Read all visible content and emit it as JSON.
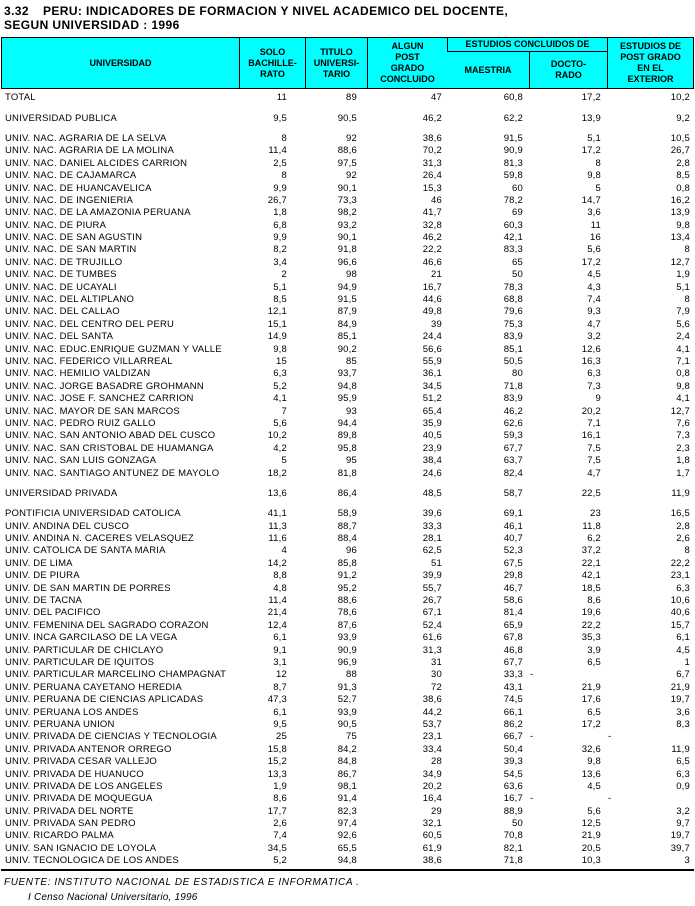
{
  "title": {
    "number": "3.32",
    "line1": "PERU: INDICADORES DE FORMACION Y NIVEL ACADEMICO DEL DOCENTE,",
    "line2": "SEGUN UNIVERSIDAD : 1996"
  },
  "table": {
    "header_fill": "#00FFFF",
    "columns": {
      "universidad": "UNIVERSIDAD",
      "solo_bachillerato": "SOLO\nBACHILLE-\nRATO",
      "titulo_universitario": "TITULO\nUNIVERSI-\nTARIO",
      "algun_post_grado": "ALGUN\nPOST\nGRADO\nCONCLUIDO",
      "estudios_concluidos_de": "ESTUDIOS CONCLUIDOS DE",
      "maestria": "MAESTRIA",
      "doctorado": "DOCTO-\nRADO",
      "post_grado_exterior": "ESTUDIOS DE\nPOST GRADO\nEN EL\nEXTERIOR"
    },
    "rows": [
      {
        "name": "TOTAL",
        "b": "11",
        "t": "89",
        "p": "47",
        "m": "60,8",
        "d": "17,2",
        "e": "10,2"
      },
      {
        "name": "UNIVERSIDAD PUBLICA",
        "b": "9,5",
        "t": "90,5",
        "p": "46,2",
        "m": "62,2",
        "d": "13,9",
        "e": "9,2",
        "gap": true
      },
      {
        "name": "UNIV. NAC. AGRARIA DE LA SELVA",
        "b": "8",
        "t": "92",
        "p": "38,6",
        "m": "91,5",
        "d": "5,1",
        "e": "10,5",
        "gap": true
      },
      {
        "name": "UNIV. NAC. AGRARIA DE LA MOLINA",
        "b": "11,4",
        "t": "88,6",
        "p": "70,2",
        "m": "90,9",
        "d": "17,2",
        "e": "26,7"
      },
      {
        "name": "UNIV. NAC. DANIEL ALCIDES CARRION",
        "b": "2,5",
        "t": "97,5",
        "p": "31,3",
        "m": "81,3",
        "d": "8",
        "e": "2,8"
      },
      {
        "name": "UNIV. NAC. DE CAJAMARCA",
        "b": "8",
        "t": "92",
        "p": "26,4",
        "m": "59,8",
        "d": "9,8",
        "e": "8,5"
      },
      {
        "name": "UNIV. NAC. DE HUANCAVELICA",
        "b": "9,9",
        "t": "90,1",
        "p": "15,3",
        "m": "60",
        "d": "5",
        "e": "0,8"
      },
      {
        "name": "UNIV. NAC. DE INGENIERIA",
        "b": "26,7",
        "t": "73,3",
        "p": "46",
        "m": "78,2",
        "d": "14,7",
        "e": "16,2"
      },
      {
        "name": "UNIV. NAC. DE LA AMAZONIA PERUANA",
        "b": "1,8",
        "t": "98,2",
        "p": "41,7",
        "m": "69",
        "d": "3,6",
        "e": "13,9"
      },
      {
        "name": "UNIV. NAC. DE PIURA",
        "b": "6,8",
        "t": "93,2",
        "p": "32,8",
        "m": "60,3",
        "d": "11",
        "e": "9,8"
      },
      {
        "name": "UNIV. NAC. DE SAN AGUSTIN",
        "b": "9,9",
        "t": "90,1",
        "p": "46,2",
        "m": "42,1",
        "d": "16",
        "e": "13,4"
      },
      {
        "name": "UNIV. NAC. DE SAN MARTIN",
        "b": "8,2",
        "t": "91,8",
        "p": "22,2",
        "m": "83,3",
        "d": "5,6",
        "e": "8"
      },
      {
        "name": "UNIV. NAC. DE TRUJILLO",
        "b": "3,4",
        "t": "96,6",
        "p": "46,6",
        "m": "65",
        "d": "17,2",
        "e": "12,7"
      },
      {
        "name": "UNIV. NAC. DE TUMBES",
        "b": "2",
        "t": "98",
        "p": "21",
        "m": "50",
        "d": "4,5",
        "e": "1,9"
      },
      {
        "name": "UNIV. NAC. DE UCAYALI",
        "b": "5,1",
        "t": "94,9",
        "p": "16,7",
        "m": "78,3",
        "d": "4,3",
        "e": "5,1"
      },
      {
        "name": "UNIV. NAC. DEL ALTIPLANO",
        "b": "8,5",
        "t": "91,5",
        "p": "44,6",
        "m": "68,8",
        "d": "7,4",
        "e": "8"
      },
      {
        "name": "UNIV. NAC. DEL CALLAO",
        "b": "12,1",
        "t": "87,9",
        "p": "49,8",
        "m": "79,6",
        "d": "9,3",
        "e": "7,9"
      },
      {
        "name": "UNIV. NAC. DEL CENTRO DEL PERU",
        "b": "15,1",
        "t": "84,9",
        "p": "39",
        "m": "75,3",
        "d": "4,7",
        "e": "5,6"
      },
      {
        "name": "UNIV. NAC. DEL SANTA",
        "b": "14,9",
        "t": "85,1",
        "p": "24,4",
        "m": "83,9",
        "d": "3,2",
        "e": "2,4"
      },
      {
        "name": "UNIV. NAC. EDUC.ENRIQUE GUZMAN Y VALLE",
        "b": "9,8",
        "t": "90,2",
        "p": "56,6",
        "m": "85,1",
        "d": "12,6",
        "e": "4,1"
      },
      {
        "name": "UNIV. NAC. FEDERICO VILLARREAL",
        "b": "15",
        "t": "85",
        "p": "55,9",
        "m": "50,5",
        "d": "16,3",
        "e": "7,1"
      },
      {
        "name": "UNIV. NAC. HEMILIO VALDIZAN",
        "b": "6,3",
        "t": "93,7",
        "p": "36,1",
        "m": "80",
        "d": "6,3",
        "e": "0,8"
      },
      {
        "name": "UNIV. NAC. JORGE BASADRE GROHMANN",
        "b": "5,2",
        "t": "94,8",
        "p": "34,5",
        "m": "71,8",
        "d": "7,3",
        "e": "9,8"
      },
      {
        "name": "UNIV. NAC. JOSE F. SANCHEZ CARRION",
        "b": "4,1",
        "t": "95,9",
        "p": "51,2",
        "m": "83,9",
        "d": "9",
        "e": "4,1"
      },
      {
        "name": "UNIV. NAC. MAYOR DE SAN MARCOS",
        "b": "7",
        "t": "93",
        "p": "65,4",
        "m": "46,2",
        "d": "20,2",
        "e": "12,7"
      },
      {
        "name": "UNIV. NAC. PEDRO RUIZ GALLO",
        "b": "5,6",
        "t": "94,4",
        "p": "35,9",
        "m": "62,6",
        "d": "7,1",
        "e": "7,6"
      },
      {
        "name": "UNIV. NAC. SAN ANTONIO ABAD DEL CUSCO",
        "b": "10,2",
        "t": "89,8",
        "p": "40,5",
        "m": "59,3",
        "d": "16,1",
        "e": "7,3"
      },
      {
        "name": "UNIV. NAC. SAN CRISTOBAL DE HUAMANGA",
        "b": "4,2",
        "t": "95,8",
        "p": "23,9",
        "m": "67,7",
        "d": "7,5",
        "e": "2,3"
      },
      {
        "name": "UNIV. NAC. SAN LUIS GONZAGA",
        "b": "5",
        "t": "95",
        "p": "38,4",
        "m": "63,7",
        "d": "7,5",
        "e": "1,8"
      },
      {
        "name": "UNIV. NAC. SANTIAGO ANTUNEZ DE MAYOLO",
        "b": "18,2",
        "t": "81,8",
        "p": "24,6",
        "m": "82,4",
        "d": "4,7",
        "e": "1,7"
      },
      {
        "name": "UNIVERSIDAD PRIVADA",
        "b": "13,6",
        "t": "86,4",
        "p": "48,5",
        "m": "58,7",
        "d": "22,5",
        "e": "11,9",
        "gap": true
      },
      {
        "name": "PONTIFICIA UNIVERSIDAD CATOLICA",
        "b": "41,1",
        "t": "58,9",
        "p": "39,6",
        "m": "69,1",
        "d": "23",
        "e": "16,5",
        "gap": true
      },
      {
        "name": "UNIV. ANDINA DEL CUSCO",
        "b": "11,3",
        "t": "88,7",
        "p": "33,3",
        "m": "46,1",
        "d": "11,8",
        "e": "2,8"
      },
      {
        "name": "UNIV. ANDINA N. CACERES VELASQUEZ",
        "b": "11,6",
        "t": "88,4",
        "p": "28,1",
        "m": "40,7",
        "d": "6,2",
        "e": "2,6"
      },
      {
        "name": "UNIV. CATOLICA DE SANTA MARIA",
        "b": "4",
        "t": "96",
        "p": "62,5",
        "m": "52,3",
        "d": "37,2",
        "e": "8"
      },
      {
        "name": "UNIV. DE LIMA",
        "b": "14,2",
        "t": "85,8",
        "p": "51",
        "m": "67,5",
        "d": "22,1",
        "e": "22,2"
      },
      {
        "name": "UNIV. DE PIURA",
        "b": "8,8",
        "t": "91,2",
        "p": "39,9",
        "m": "29,8",
        "d": "42,1",
        "e": "23,1"
      },
      {
        "name": "UNIV. DE SAN MARTIN DE PORRES",
        "b": "4,8",
        "t": "95,2",
        "p": "55,7",
        "m": "46,7",
        "d": "18,5",
        "e": "6,3"
      },
      {
        "name": "UNIV. DE TACNA",
        "b": "11,4",
        "t": "88,6",
        "p": "26,7",
        "m": "58,6",
        "d": "8,6",
        "e": "10,6"
      },
      {
        "name": "UNIV. DEL PACIFICO",
        "b": "21,4",
        "t": "78,6",
        "p": "67,1",
        "m": "81,4",
        "d": "19,6",
        "e": "40,6"
      },
      {
        "name": "UNIV. FEMENINA DEL SAGRADO CORAZON",
        "b": "12,4",
        "t": "87,6",
        "p": "52,4",
        "m": "65,9",
        "d": "22,2",
        "e": "15,7"
      },
      {
        "name": "UNIV. INCA GARCILASO DE LA VEGA",
        "b": "6,1",
        "t": "93,9",
        "p": "61,6",
        "m": "67,8",
        "d": "35,3",
        "e": "6,1"
      },
      {
        "name": "UNIV. PARTICULAR DE CHICLAYO",
        "b": "9,1",
        "t": "90,9",
        "p": "31,3",
        "m": "46,8",
        "d": "3,9",
        "e": "4,5"
      },
      {
        "name": "UNIV. PARTICULAR DE IQUITOS",
        "b": "3,1",
        "t": "96,9",
        "p": "31",
        "m": "67,7",
        "d": "6,5",
        "e": "1"
      },
      {
        "name": "UNIV. PARTICULAR MARCELINO CHAMPAGNAT",
        "b": "12",
        "t": "88",
        "p": "30",
        "m": "33,3",
        "d": "-",
        "e": "6,7"
      },
      {
        "name": "UNIV. PERUANA CAYETANO HEREDIA",
        "b": "8,7",
        "t": "91,3",
        "p": "72",
        "m": "43,1",
        "d": "21,9",
        "e": "21,9"
      },
      {
        "name": "UNIV. PERUANA DE CIENCIAS APLICADAS",
        "b": "47,3",
        "t": "52,7",
        "p": "38,6",
        "m": "74,5",
        "d": "17,6",
        "e": "19,7"
      },
      {
        "name": "UNIV. PERUANA LOS ANDES",
        "b": "6,1",
        "t": "93,9",
        "p": "44,2",
        "m": "66,1",
        "d": "6,5",
        "e": "3,6"
      },
      {
        "name": "UNIV. PERUANA UNION",
        "b": "9,5",
        "t": "90,5",
        "p": "53,7",
        "m": "86,2",
        "d": "17,2",
        "e": "8,3"
      },
      {
        "name": "UNIV. PRIVADA DE CIENCIAS Y TECNOLOGIA",
        "b": "25",
        "t": "75",
        "p": "23,1",
        "m": "66,7",
        "d": "-",
        "e": "-"
      },
      {
        "name": "UNIV. PRIVADA ANTENOR ORREGO",
        "b": "15,8",
        "t": "84,2",
        "p": "33,4",
        "m": "50,4",
        "d": "32,6",
        "e": "11,9"
      },
      {
        "name": "UNIV. PRIVADA CESAR VALLEJO",
        "b": "15,2",
        "t": "84,8",
        "p": "28",
        "m": "39,3",
        "d": "9,8",
        "e": "6,5"
      },
      {
        "name": "UNIV. PRIVADA DE HUANUCO",
        "b": "13,3",
        "t": "86,7",
        "p": "34,9",
        "m": "54,5",
        "d": "13,6",
        "e": "6,3"
      },
      {
        "name": "UNIV. PRIVADA DE LOS ANGELES",
        "b": "1,9",
        "t": "98,1",
        "p": "20,2",
        "m": "63,6",
        "d": "4,5",
        "e": "0,9"
      },
      {
        "name": "UNIV. PRIVADA DE MOQUEGUA",
        "b": "8,6",
        "t": "91,4",
        "p": "16,4",
        "m": "16,7",
        "d": "-",
        "e": "-"
      },
      {
        "name": "UNIV. PRIVADA DEL NORTE",
        "b": "17,7",
        "t": "82,3",
        "p": "29",
        "m": "88,9",
        "d": "5,6",
        "e": "3,2"
      },
      {
        "name": "UNIV. PRIVADA SAN PEDRO",
        "b": "2,6",
        "t": "97,4",
        "p": "32,1",
        "m": "50",
        "d": "12,5",
        "e": "9,7"
      },
      {
        "name": "UNIV. RICARDO PALMA",
        "b": "7,4",
        "t": "92,6",
        "p": "60,5",
        "m": "70,8",
        "d": "21,9",
        "e": "19,7"
      },
      {
        "name": "UNIV. SAN IGNACIO DE LOYOLA",
        "b": "34,5",
        "t": "65,5",
        "p": "61,9",
        "m": "82,1",
        "d": "20,5",
        "e": "39,7"
      },
      {
        "name": "UNIV. TECNOLOGICA DE LOS ANDES",
        "b": "5,2",
        "t": "94,8",
        "p": "38,6",
        "m": "71,8",
        "d": "10,3",
        "e": "3"
      }
    ]
  },
  "footer": {
    "fuente": "FUENTE: INSTITUTO NACIONAL DE ESTADISTICA E INFORMATICA .",
    "censo": "I Censo Nacional Universitario, 1996"
  }
}
